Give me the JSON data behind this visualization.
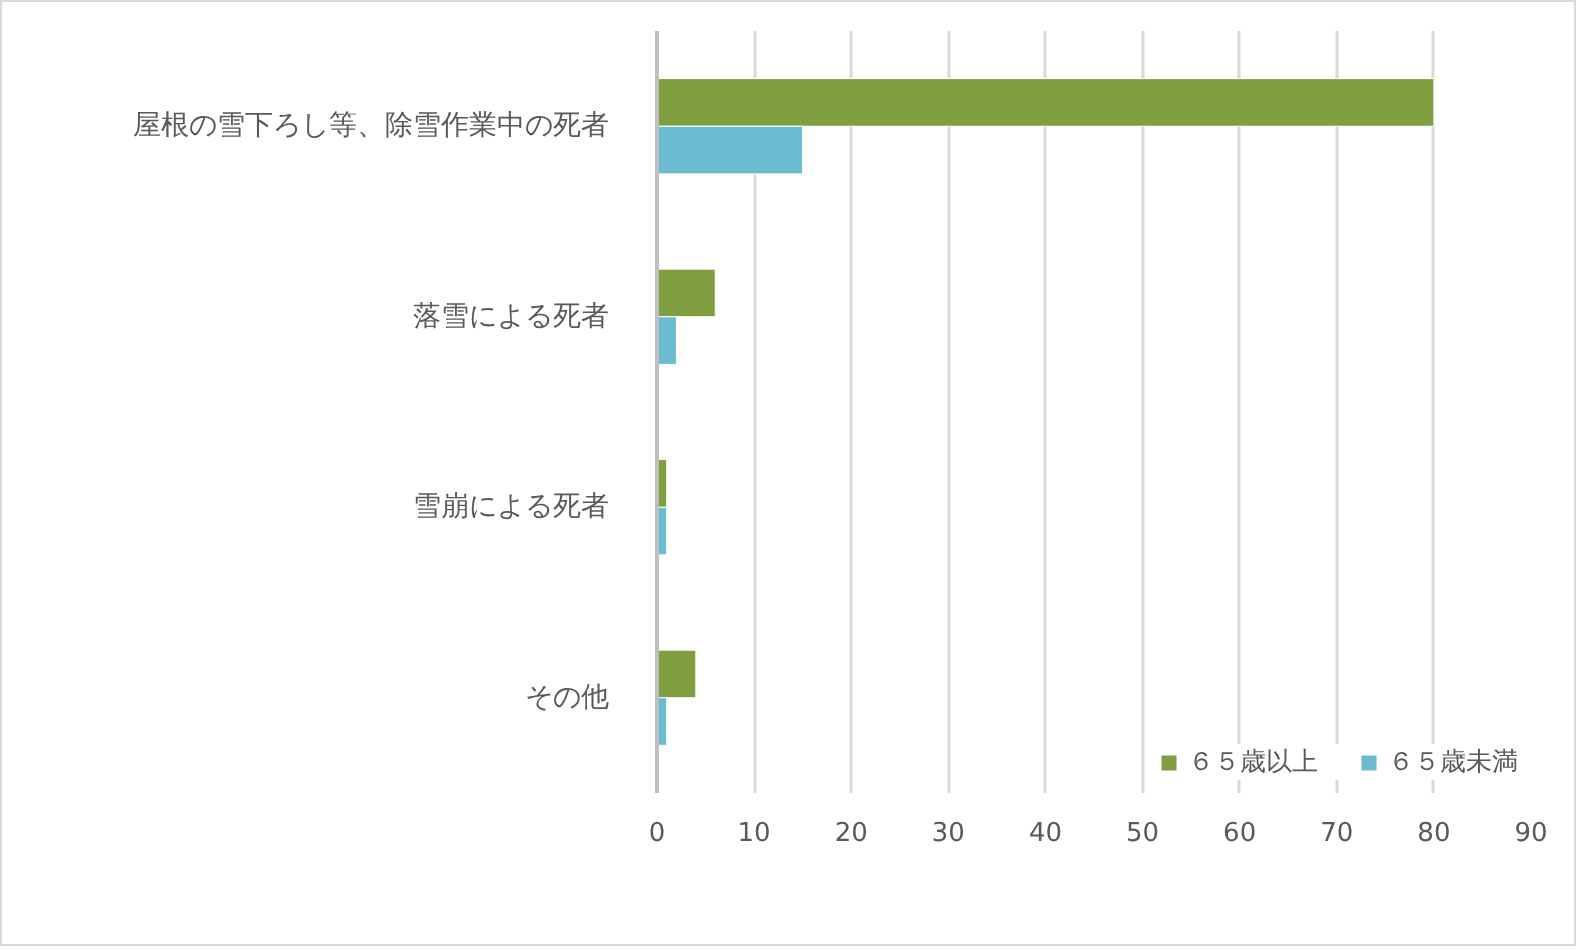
{
  "chart_data": {
    "type": "bar",
    "orientation": "horizontal",
    "categories": [
      "屋根の雪下ろし等、除雪作業中の死者",
      "落雪による死者",
      "雪崩による死者",
      "その他"
    ],
    "series": [
      {
        "name": "６５歳以上",
        "color": "#7f9e3f",
        "values": [
          80,
          6,
          1,
          4
        ]
      },
      {
        "name": "６５歳未満",
        "color": "#6cbcd1",
        "values": [
          15,
          2,
          1,
          1
        ]
      }
    ],
    "xlim": [
      0,
      90
    ],
    "xticks": [
      0,
      10,
      20,
      30,
      40,
      50,
      60,
      70,
      80,
      90
    ],
    "grid": "x",
    "legend": "bottom right"
  }
}
